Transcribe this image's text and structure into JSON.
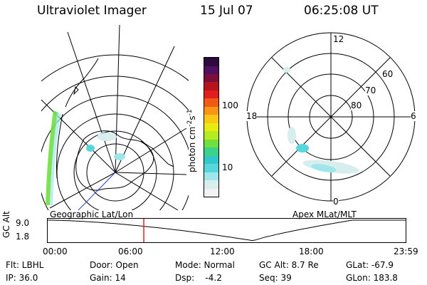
{
  "header": {
    "instrument": "Ultraviolet Imager",
    "date": "15 Jul 07",
    "time": "06:25:08 UT"
  },
  "geo_panel": {
    "label": "Geographic Lat/Lon"
  },
  "apex_panel": {
    "label": "Apex MLat/MLT",
    "mlt_labels": {
      "top": "12",
      "left": "18",
      "right": "6",
      "bottom": "0"
    },
    "lat_labels": [
      "60",
      "70",
      "80"
    ]
  },
  "colorbar": {
    "unit_main": "photon cm",
    "unit_exp1": "-2",
    "unit_mid": "s",
    "unit_exp2": "-1",
    "tick_labels": [
      "100",
      "10"
    ],
    "colors": [
      "#f2f2f2",
      "#d8eeee",
      "#9fe6ea",
      "#57d6dc",
      "#30c8c8",
      "#3cd28c",
      "#70e040",
      "#b4ec20",
      "#e8ea10",
      "#f8c814",
      "#f89418",
      "#f05a14",
      "#e01e20",
      "#b8141e",
      "#7a0f3c",
      "#501060",
      "#2c0a3c"
    ]
  },
  "altitude_plot": {
    "ylabel": "GC Alt",
    "y_ticks": [
      "9.0",
      "1.8"
    ],
    "x_ticks": [
      "00:00",
      "06:00",
      "12:00",
      "18:00",
      "23:59"
    ],
    "marker_time_fraction": 0.268,
    "min_time_fraction": 0.575
  },
  "footer": {
    "filter": "Flt: LBHL",
    "door": "Door: Open",
    "mode": "Mode: Normal",
    "gc_alt": "GC Alt: 8.7 Re",
    "glat": "GLat: -67.9",
    "ip": "IP: 36.0",
    "gain": "Gain: 14",
    "dsp": "Dsp:    -4.2",
    "seq": "Seq: 39",
    "glon": "GLon: 183.8"
  }
}
